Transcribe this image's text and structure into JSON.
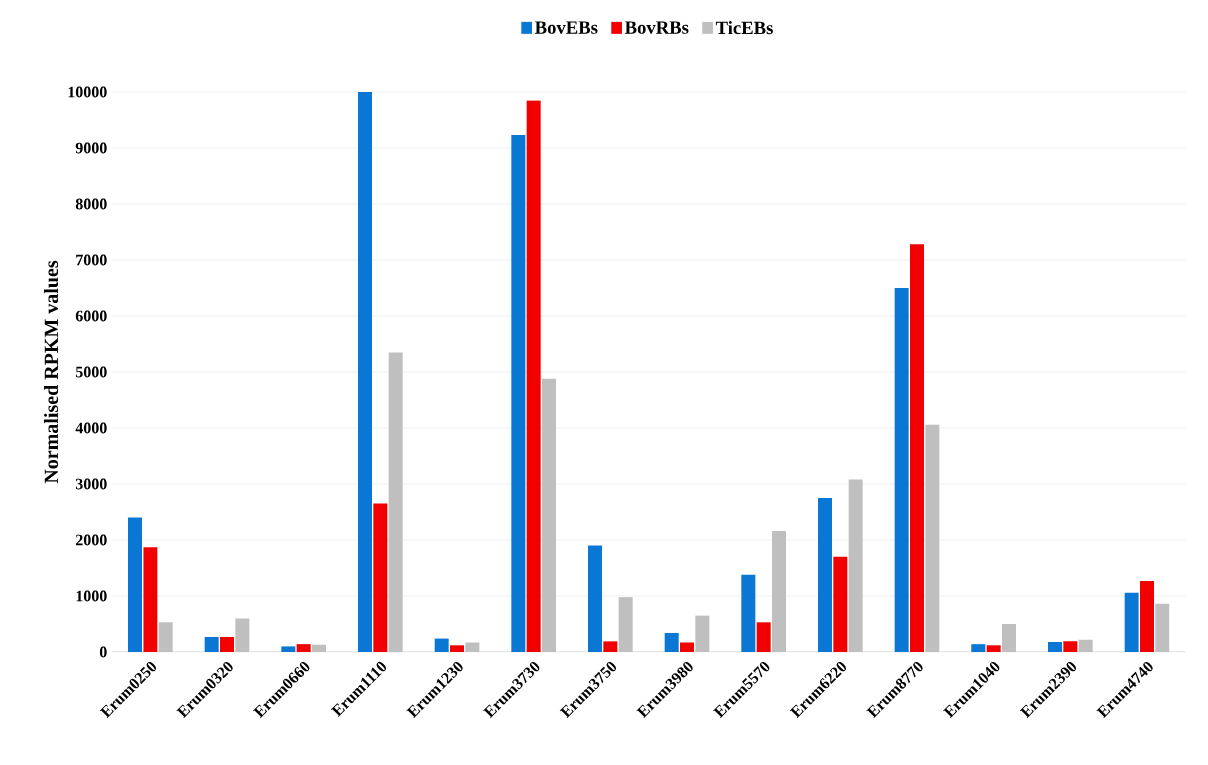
{
  "chart_data": {
    "type": "bar",
    "ylabel": "Normalised RPKM values",
    "categories": [
      "Erum0250",
      "Erum0320",
      "Erum0660",
      "Erum1110",
      "Erum1230",
      "Erum3730",
      "Erum3750",
      "Erum3980",
      "Erum5570",
      "Erum6220",
      "Erum8770",
      "Erum1040",
      "Erum2390",
      "Erum4740"
    ],
    "series": [
      {
        "name": "BovEBs",
        "color": "#0a77d4",
        "values": [
          2400,
          270,
          100,
          10000,
          240,
          9230,
          1900,
          340,
          1380,
          2750,
          6500,
          140,
          180,
          1060
        ]
      },
      {
        "name": "BovRBs",
        "color": "#f20000",
        "values": [
          1870,
          270,
          140,
          2650,
          120,
          9850,
          190,
          170,
          530,
          1700,
          7280,
          120,
          190,
          1270
        ]
      },
      {
        "name": "TicEBs",
        "color": "#bfbfbf",
        "values": [
          530,
          600,
          130,
          5350,
          170,
          4880,
          980,
          650,
          2160,
          3080,
          4060,
          500,
          220,
          860
        ]
      }
    ],
    "ylim": [
      0,
      10000
    ],
    "yticks": [
      0,
      1000,
      2000,
      3000,
      4000,
      5000,
      6000,
      7000,
      8000,
      9000,
      10000
    ],
    "grid": "y",
    "legend": "top"
  }
}
